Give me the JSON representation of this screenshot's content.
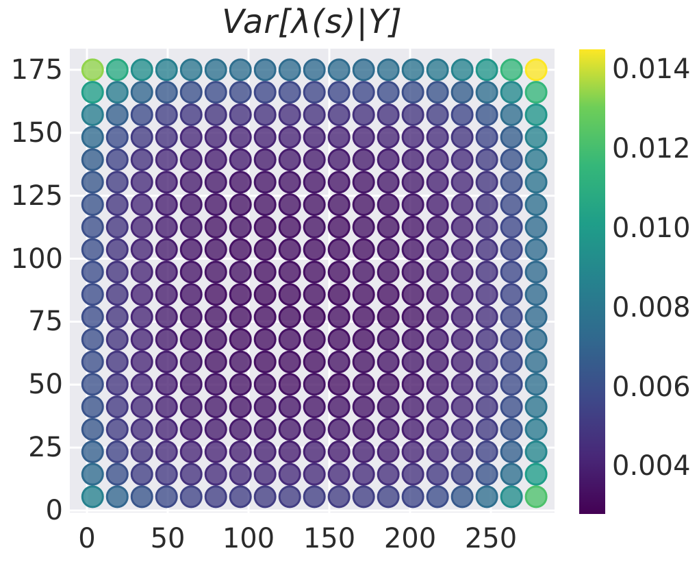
{
  "figure": {
    "title": "Var[λ(s)|Y]"
  },
  "chart_data": {
    "type": "scatter",
    "title": "Var[λ(s)|Y]",
    "xlabel": "",
    "ylabel": "",
    "grid": true,
    "x_ticks": [
      0,
      50,
      100,
      150,
      200,
      250
    ],
    "y_ticks": [
      0,
      25,
      50,
      75,
      100,
      125,
      150,
      175
    ],
    "xlim": [
      -10.6,
      289.4
    ],
    "ylim": [
      -0.8,
      183.4
    ],
    "x": [
      3.5,
      18.75,
      34,
      49.25,
      64.5,
      79.75,
      95,
      110.25,
      125.5,
      140.75,
      156,
      171.25,
      186.5,
      201.75,
      217,
      232.25,
      247.5,
      262.75,
      278
    ],
    "y": [
      175,
      166.08,
      157.16,
      148.24,
      139.32,
      130.39,
      121.47,
      112.55,
      103.63,
      94.71,
      85.79,
      76.87,
      67.95,
      59.03,
      50.11,
      41.18,
      32.26,
      23.34,
      14.42,
      5.5
    ],
    "values_unit": 0.0001,
    "values": [
      [
        134,
        108,
        93,
        85,
        80,
        77,
        75,
        74,
        74,
        73,
        74,
        74,
        76,
        78,
        81,
        87,
        97,
        115,
        146
      ],
      [
        102,
        83,
        71,
        65,
        61,
        59,
        58,
        57,
        57,
        56,
        57,
        57,
        59,
        60,
        62,
        67,
        75,
        90,
        115
      ],
      [
        84,
        68,
        58,
        53,
        50,
        48,
        47,
        47,
        46,
        47,
        47,
        47,
        47,
        49,
        52,
        56,
        63,
        75,
        97
      ],
      [
        73,
        59,
        51,
        47,
        43,
        42,
        41,
        41,
        41,
        41,
        41,
        41,
        42,
        43,
        45,
        49,
        56,
        67,
        87
      ],
      [
        67,
        55,
        47,
        43,
        40,
        39,
        39,
        38,
        38,
        38,
        38,
        38,
        39,
        40,
        42,
        45,
        52,
        62,
        81
      ],
      [
        64,
        52,
        44,
        40,
        38,
        37,
        36,
        36,
        36,
        36,
        36,
        36,
        37,
        38,
        40,
        43,
        49,
        60,
        78
      ],
      [
        62,
        49,
        43,
        39,
        37,
        36,
        35,
        35,
        35,
        35,
        35,
        35,
        36,
        37,
        39,
        42,
        48,
        58,
        76
      ],
      [
        60,
        49,
        42,
        39,
        37,
        35,
        35,
        34,
        34,
        35,
        34,
        35,
        35,
        36,
        38,
        41,
        47,
        57,
        74
      ],
      [
        60,
        48,
        42,
        38,
        36,
        35,
        34,
        34,
        34,
        34,
        34,
        34,
        35,
        36,
        38,
        41,
        47,
        56,
        74
      ],
      [
        59,
        48,
        42,
        38,
        36,
        35,
        35,
        34,
        34,
        34,
        34,
        35,
        35,
        36,
        38,
        41,
        47,
        57,
        73
      ],
      [
        59,
        48,
        41,
        38,
        36,
        34,
        34,
        33,
        33,
        34,
        33,
        34,
        34,
        35,
        37,
        41,
        46,
        56,
        73
      ],
      [
        59,
        48,
        42,
        38,
        36,
        35,
        34,
        34,
        33,
        33,
        34,
        34,
        34,
        35,
        37,
        41,
        46,
        56,
        73
      ],
      [
        60,
        48,
        42,
        38,
        36,
        35,
        34,
        34,
        34,
        34,
        34,
        34,
        35,
        36,
        38,
        41,
        47,
        56,
        74
      ],
      [
        60,
        49,
        42,
        39,
        37,
        35,
        35,
        34,
        34,
        34,
        35,
        35,
        36,
        37,
        38,
        41,
        47,
        57,
        75
      ],
      [
        61,
        49,
        43,
        39,
        37,
        36,
        35,
        35,
        34,
        35,
        34,
        35,
        35,
        36,
        38,
        42,
        48,
        58,
        76
      ],
      [
        62,
        50,
        44,
        40,
        38,
        37,
        36,
        36,
        36,
        36,
        36,
        36,
        37,
        38,
        40,
        43,
        49,
        60,
        79
      ],
      [
        64,
        52,
        46,
        42,
        39,
        38,
        37,
        37,
        37,
        37,
        37,
        37,
        38,
        39,
        41,
        45,
        51,
        62,
        82
      ],
      [
        68,
        55,
        48,
        44,
        42,
        41,
        40,
        40,
        39,
        40,
        39,
        40,
        40,
        42,
        44,
        48,
        55,
        68,
        89
      ],
      [
        74,
        61,
        53,
        50,
        47,
        45,
        45,
        44,
        44,
        44,
        44,
        45,
        46,
        47,
        50,
        54,
        62,
        76,
        101
      ],
      [
        86,
        71,
        63,
        58,
        55,
        53,
        53,
        52,
        52,
        53,
        52,
        53,
        54,
        56,
        59,
        65,
        75,
        92,
        122
      ]
    ],
    "colorbar": {
      "vmin": 0.0028,
      "vmax": 0.0145,
      "ticks": [
        0.004,
        0.006,
        0.008,
        0.01,
        0.012,
        0.014
      ],
      "tick_labels": [
        "0.004",
        "0.006",
        "0.008",
        "0.010",
        "0.012",
        "0.014"
      ],
      "position": "right"
    },
    "colormap": {
      "name": "viridis",
      "anchors": [
        [
          0.0,
          "#440154"
        ],
        [
          0.125,
          "#482878"
        ],
        [
          0.25,
          "#3e4989"
        ],
        [
          0.375,
          "#31688e"
        ],
        [
          0.5,
          "#26828e"
        ],
        [
          0.625,
          "#1f9e89"
        ],
        [
          0.75,
          "#35b779"
        ],
        [
          0.875,
          "#6ece58"
        ],
        [
          1.0,
          "#fde725"
        ]
      ]
    },
    "style": {
      "plot_background": "#eaeaef",
      "figure_background": "#ffffff",
      "gridline_color": "#ffffff",
      "tick_color": "#2b2b2b",
      "marker_fill_opacity": 0.78
    }
  }
}
